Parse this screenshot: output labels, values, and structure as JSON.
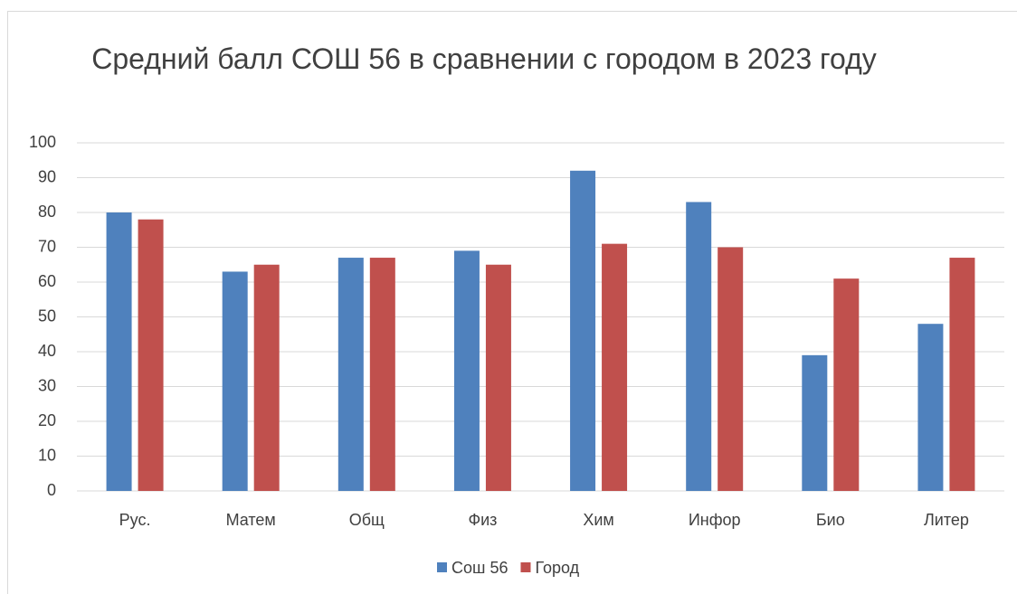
{
  "chart_data": {
    "type": "bar",
    "title": "Средний балл СОШ 56 в сравнении с городом в 2023 году",
    "categories": [
      "Рус.",
      "Матем",
      "Общ",
      "Физ",
      "Хим",
      "Инфор",
      "Био",
      "Литер"
    ],
    "series": [
      {
        "name": "Сош 56",
        "color": "#4f81bd",
        "values": [
          80,
          63,
          67,
          69,
          92,
          83,
          39,
          48
        ]
      },
      {
        "name": "Город",
        "color": "#c0504d",
        "values": [
          78,
          65,
          67,
          65,
          71,
          70,
          61,
          67
        ]
      }
    ],
    "ylim": [
      0,
      100
    ],
    "yticks": [
      0,
      10,
      20,
      30,
      40,
      50,
      60,
      70,
      80,
      90,
      100
    ],
    "grid": true,
    "legend": "bottom"
  }
}
